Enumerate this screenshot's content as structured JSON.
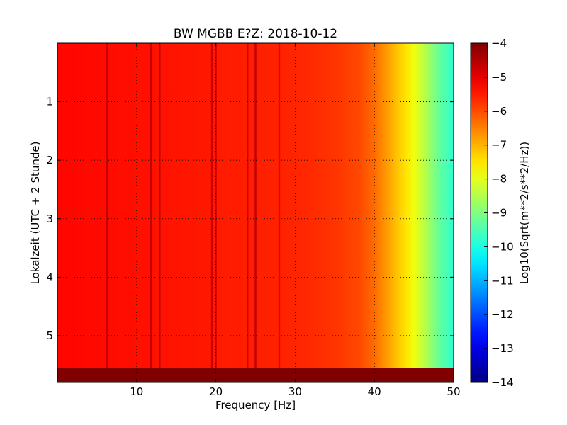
{
  "chart_data": {
    "type": "heatmap",
    "title": "BW MGBB E?Z: 2018-10-12",
    "xlabel": "Frequency [Hz]",
    "ylabel": "Lokalzeit (UTC + 2 Stunde)",
    "xlim": [
      0,
      50
    ],
    "ylim": [
      5.8,
      0
    ],
    "xticks": [
      10,
      20,
      30,
      40,
      50
    ],
    "yticks": [
      1,
      2,
      3,
      4,
      5
    ],
    "grid": true,
    "colormap": "jet",
    "colorbar": {
      "label": "Log10(Sqrt(m**2/s**2/Hz))",
      "vmin": -14,
      "vmax": -4,
      "ticks": [
        -4,
        -5,
        -6,
        -7,
        -8,
        -9,
        -10,
        -11,
        -12,
        -13,
        -14
      ]
    },
    "background_profile": {
      "freq": [
        0,
        5,
        10,
        20,
        30,
        35,
        38,
        40,
        42,
        44,
        46,
        48,
        50
      ],
      "value": [
        -5.3,
        -5.35,
        -5.4,
        -5.5,
        -5.6,
        -5.75,
        -5.95,
        -6.3,
        -6.9,
        -7.5,
        -8.3,
        -9.2,
        -9.8
      ]
    },
    "vertical_lines": [
      {
        "freq": 6.3,
        "value": -4.6
      },
      {
        "freq": 11.8,
        "value": -4.7
      },
      {
        "freq": 12.9,
        "value": -4.5
      },
      {
        "freq": 19.5,
        "value": -4.8
      },
      {
        "freq": 20.0,
        "value": -4.8
      },
      {
        "freq": 24.0,
        "value": -4.9
      },
      {
        "freq": 25.0,
        "value": -4.6
      },
      {
        "freq": 28.0,
        "value": -5.1
      }
    ],
    "no_data_band": {
      "time_start": 5.55,
      "time_end": 5.8,
      "value": -4
    }
  }
}
